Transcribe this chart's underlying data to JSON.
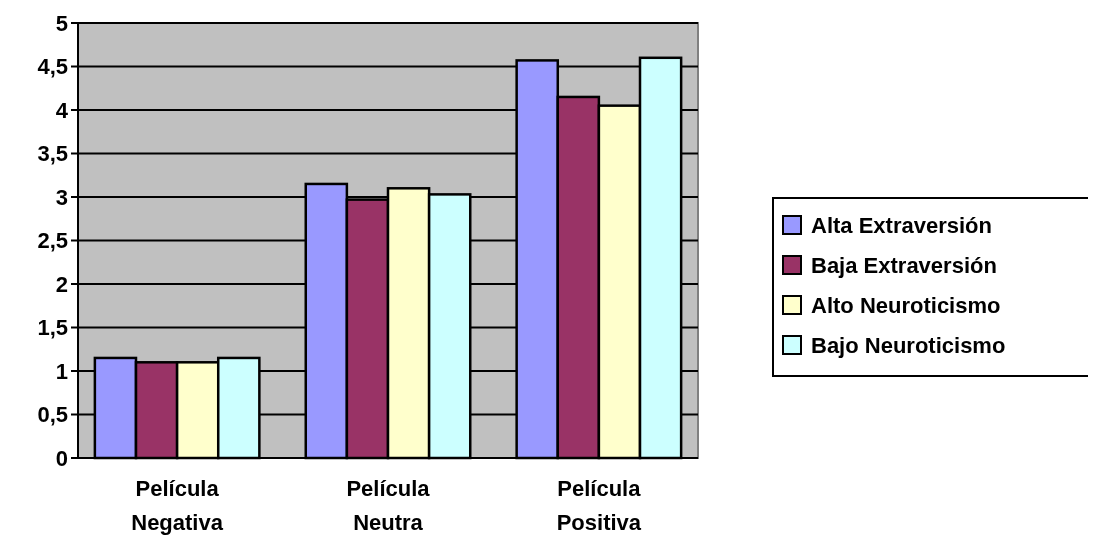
{
  "chart_data": {
    "type": "bar",
    "categories": [
      "Película Negativa",
      "Película Neutra",
      "Película Positiva"
    ],
    "series": [
      {
        "name": "Alta Extraversión",
        "color": "#9999ff",
        "values": [
          1.15,
          3.15,
          4.57
        ]
      },
      {
        "name": "Baja Extraversión",
        "color": "#993366",
        "values": [
          1.1,
          2.97,
          4.15
        ]
      },
      {
        "name": "Alto Neuroticismo",
        "color": "#ffffcc",
        "values": [
          1.1,
          3.1,
          4.05
        ]
      },
      {
        "name": "Bajo Neuroticismo",
        "color": "#ccffff",
        "values": [
          1.15,
          3.03,
          4.6
        ]
      }
    ],
    "ylim": [
      0,
      5
    ],
    "yticks": [
      0,
      {
        "value": 0.5,
        "label": "0,5"
      },
      1,
      {
        "value": 1.5,
        "label": "1,5"
      },
      2,
      {
        "value": 2.5,
        "label": "2,5"
      },
      3,
      {
        "value": 3.5,
        "label": "3,5"
      },
      4,
      {
        "value": 4.5,
        "label": "4,5"
      },
      5
    ],
    "grid": "y",
    "legend": "right"
  }
}
